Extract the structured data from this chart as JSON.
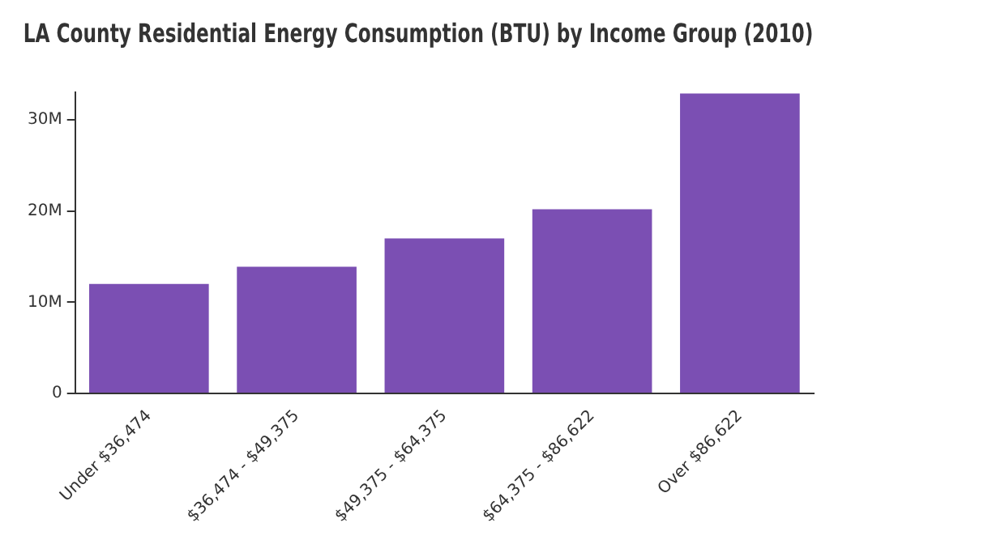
{
  "chart_data": {
    "type": "bar",
    "title": "LA County Residential Energy Consumption (BTU) by Income Group (2010)",
    "categories": [
      "Under $36,474",
      "$36,474 - $49,375",
      "$49,375 - $64,375",
      "$64,375 - $86,622",
      "Over $86,622"
    ],
    "values": [
      12000000,
      13900000,
      17000000,
      20200000,
      32900000
    ],
    "color": "#7b4fb3",
    "ylim": [
      0,
      33000000
    ],
    "yticks": [
      {
        "value": 0,
        "label": "0"
      },
      {
        "value": 10000000,
        "label": "10M"
      },
      {
        "value": 20000000,
        "label": "20M"
      },
      {
        "value": 30000000,
        "label": "30M"
      }
    ],
    "grid": false,
    "legend": false
  }
}
